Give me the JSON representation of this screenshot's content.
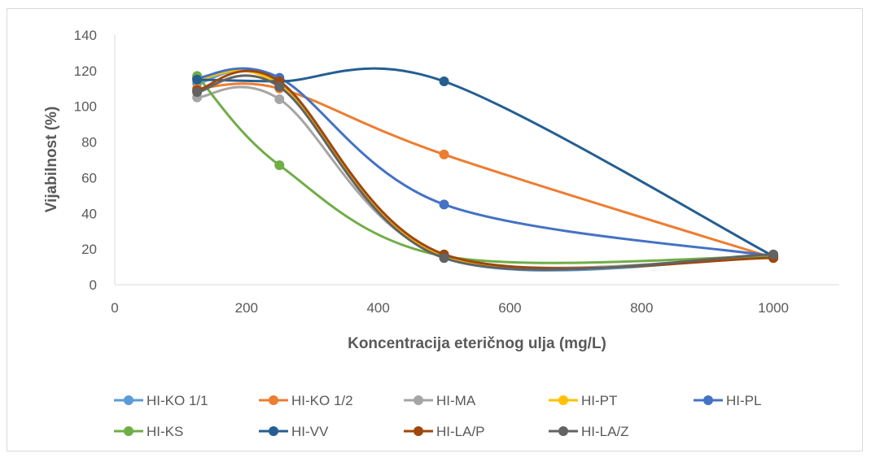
{
  "chart_data": {
    "type": "scatter",
    "title": "",
    "xlabel": "Koncentracija eteričnog ulja (mg/L)",
    "ylabel": "Vijabilnost (%)",
    "xlim": [
      0,
      1100
    ],
    "ylim": [
      0,
      140
    ],
    "xticks": [
      0,
      200,
      400,
      600,
      800,
      1000
    ],
    "yticks": [
      0,
      20,
      40,
      60,
      80,
      100,
      120,
      140
    ],
    "grid": false,
    "smooth_lines": true,
    "legend_position": "bottom",
    "x": [
      125,
      250,
      500,
      1000
    ],
    "series": [
      {
        "name": "HI-KO 1/1",
        "color": "#5B9BD5",
        "values": [
          113,
          113,
          15,
          16
        ]
      },
      {
        "name": "HI-KO 1/2",
        "color": "#ED7D31",
        "values": [
          110,
          110,
          73,
          15
        ]
      },
      {
        "name": "HI-MA",
        "color": "#A5A5A5",
        "values": [
          105,
          104,
          16,
          16
        ]
      },
      {
        "name": "HI-PT",
        "color": "#FFC000",
        "values": [
          115,
          112,
          16,
          16
        ]
      },
      {
        "name": "HI-PL",
        "color": "#4472C4",
        "values": [
          116,
          116,
          45,
          16
        ]
      },
      {
        "name": "HI-KS",
        "color": "#70AD47",
        "values": [
          117,
          67,
          16,
          16
        ]
      },
      {
        "name": "HI-VV",
        "color": "#255E91",
        "values": [
          115,
          114,
          114,
          16
        ]
      },
      {
        "name": "HI-LA/P",
        "color": "#9E480E",
        "values": [
          109,
          114,
          17,
          15
        ]
      },
      {
        "name": "HI-LA/Z",
        "color": "#636363",
        "values": [
          108,
          111,
          15,
          17
        ]
      }
    ]
  }
}
